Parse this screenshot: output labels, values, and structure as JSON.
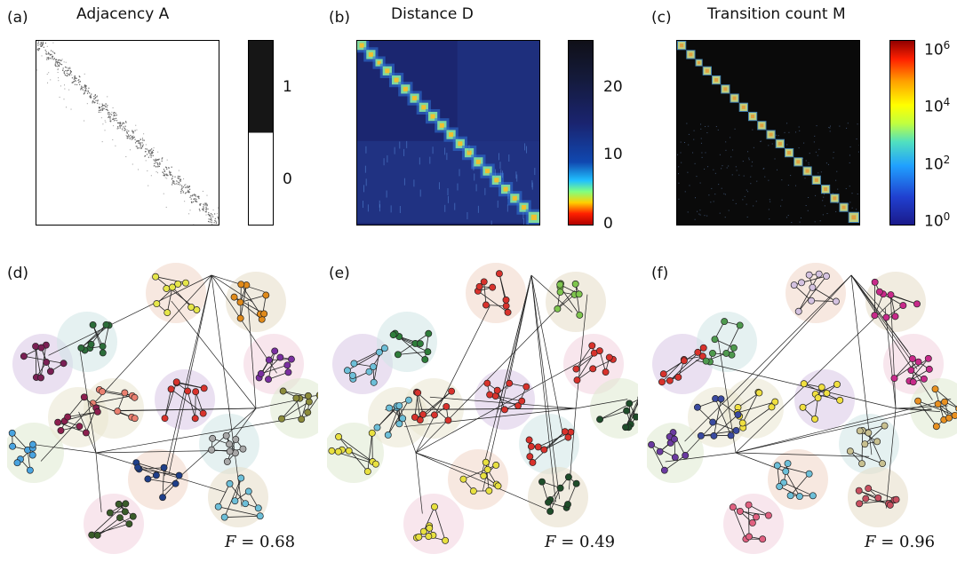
{
  "panels_top": [
    {
      "label": "(a)",
      "title": "Adjacency A",
      "ticks": [
        "1",
        "0"
      ]
    },
    {
      "label": "(b)",
      "title": "Distance D",
      "ticks": [
        "20",
        "10",
        "0"
      ]
    },
    {
      "label": "(c)",
      "title": "Transition count M",
      "ticks": [
        "10",
        "6",
        "10",
        "4",
        "10",
        "2",
        "10",
        "0"
      ]
    }
  ],
  "panels_bottom": [
    {
      "label": "(d)",
      "f_symbol": "F",
      "f_value": "= 0.68"
    },
    {
      "label": "(e)",
      "f_symbol": "F",
      "f_value": "= 0.49"
    },
    {
      "label": "(f)",
      "f_symbol": "F",
      "f_value": "= 0.96"
    }
  ],
  "colors": {
    "colormap_jet": [
      "#8b0000",
      "#ff0000",
      "#ff8c00",
      "#ffff00",
      "#7fff7f",
      "#00bfff",
      "#0000cd",
      "#1a1a5e"
    ],
    "adjacency_on": "#111111",
    "adjacency_off": "#ffffff"
  }
}
